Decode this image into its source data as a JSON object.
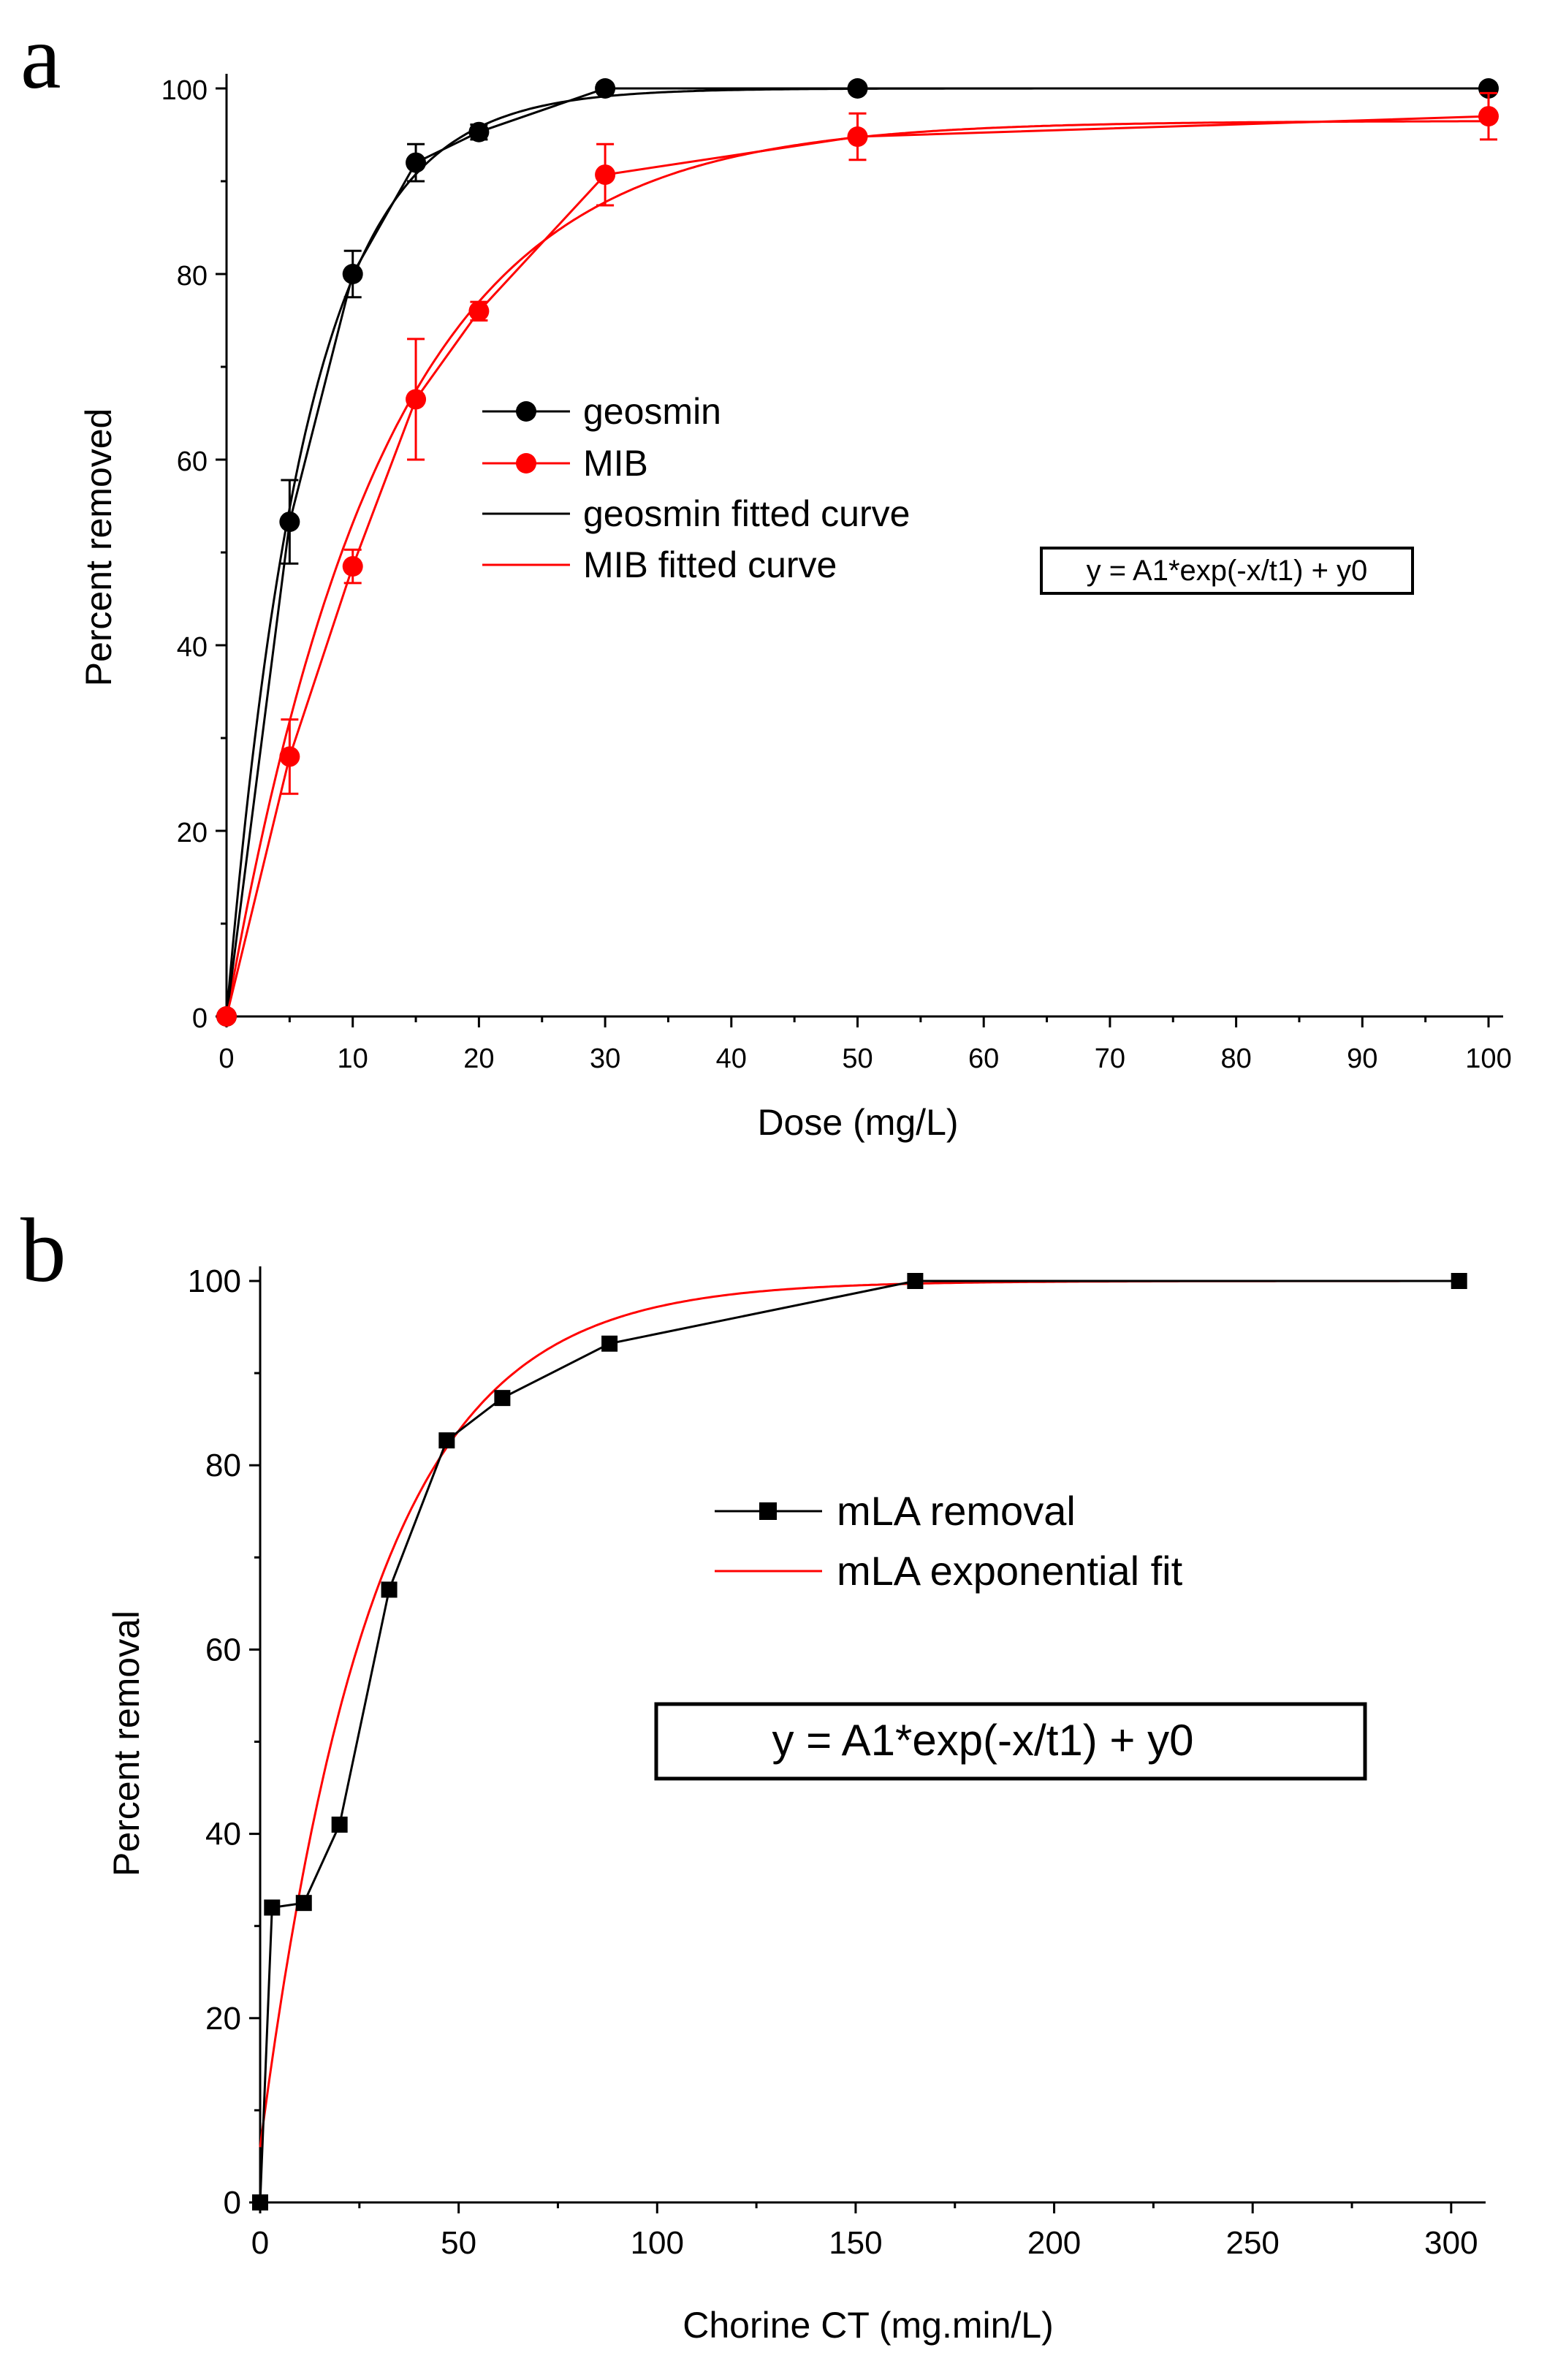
{
  "chart_data": [
    {
      "panel_label": "a",
      "type": "line",
      "title": "",
      "xlabel": "Dose (mg/L)",
      "ylabel": "Percent removed",
      "xlim": [
        0,
        100
      ],
      "ylim": [
        0,
        100
      ],
      "xticks": [
        0,
        10,
        20,
        30,
        40,
        50,
        60,
        70,
        80,
        90,
        100
      ],
      "yticks": [
        0,
        20,
        40,
        60,
        80,
        100
      ],
      "grid": false,
      "legend_position": "center",
      "series": [
        {
          "name": "geosmin",
          "color": "#000000",
          "marker": "circle",
          "x": [
            0,
            5,
            10,
            15,
            20,
            30,
            50,
            100
          ],
          "y": [
            0,
            53.3,
            80,
            92,
            95.3,
            100,
            100,
            100
          ],
          "error": [
            0,
            4.5,
            2.5,
            2,
            0.8,
            0.5,
            0.5,
            0.5
          ]
        },
        {
          "name": "MIB",
          "color": "#ff0000",
          "marker": "circle",
          "x": [
            0,
            5,
            10,
            15,
            20,
            30,
            50,
            100
          ],
          "y": [
            0,
            28,
            48.5,
            66.5,
            76,
            90.7,
            94.8,
            97
          ],
          "error": [
            0,
            4,
            1.8,
            6.5,
            1,
            3.3,
            2.5,
            2.5
          ]
        },
        {
          "name": "geosmin fitted curve",
          "color": "#000000",
          "fit": {
            "y0": 100,
            "A1": -100,
            "t1": 6.3
          }
        },
        {
          "name": "MIB fitted curve",
          "color": "#ff0000",
          "fit": {
            "y0": 96.5,
            "A1": -96.5,
            "t1": 12.5
          }
        }
      ],
      "equation": "y = A1*exp(-x/t1) + y0"
    },
    {
      "panel_label": "b",
      "type": "line",
      "title": "",
      "xlabel": "Chorine CT (mg.min/L)",
      "ylabel": "Percent removal",
      "xlim": [
        0,
        305
      ],
      "ylim": [
        0,
        100
      ],
      "xticks": [
        0,
        50,
        100,
        150,
        200,
        250,
        300
      ],
      "yticks": [
        0,
        20,
        40,
        60,
        80,
        100
      ],
      "grid": false,
      "legend_position": "center-right",
      "series": [
        {
          "name": "mLA removal",
          "color": "#000000",
          "marker": "square",
          "x": [
            0,
            3,
            11,
            20,
            32.5,
            47,
            61,
            88,
            165,
            302
          ],
          "y": [
            0,
            32,
            32.5,
            41,
            66.5,
            82.7,
            87.3,
            93.2,
            100,
            100
          ]
        },
        {
          "name": "mLA exponential fit",
          "color": "#ff0000",
          "fit": {
            "y0": 100,
            "A1": -94,
            "t1": 28.5
          }
        }
      ],
      "equation": "y = A1*exp(-x/t1) + y0"
    }
  ]
}
